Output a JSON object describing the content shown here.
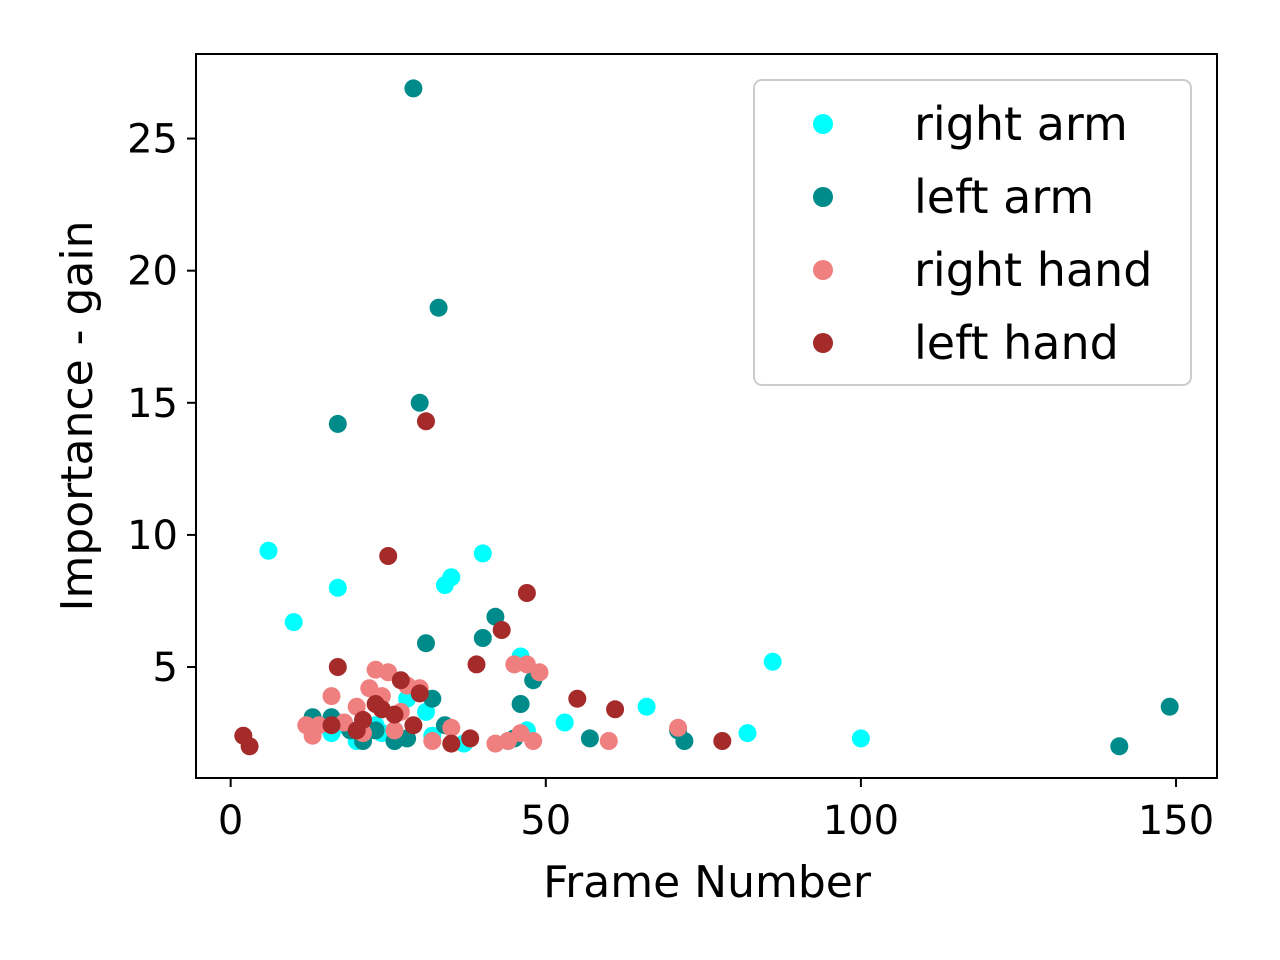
{
  "chart_data": {
    "type": "scatter",
    "title": "",
    "xlabel": "Frame Number",
    "ylabel": "Importance - gain",
    "xlim": [
      -5.5,
      156.5
    ],
    "ylim": [
      0.8,
      28.2
    ],
    "xticks": [
      0,
      50,
      100,
      150
    ],
    "yticks": [
      5,
      10,
      15,
      20,
      25
    ],
    "grid": false,
    "legend_position": "top-right",
    "series": [
      {
        "name": "right arm",
        "color": "#00ffff",
        "points": [
          [
            6,
            9.4
          ],
          [
            10,
            6.7
          ],
          [
            17,
            8.0
          ],
          [
            16,
            2.5
          ],
          [
            18,
            2.8
          ],
          [
            20,
            2.2
          ],
          [
            21,
            2.3
          ],
          [
            23,
            2.8
          ],
          [
            24,
            2.5
          ],
          [
            26,
            2.6
          ],
          [
            28,
            3.8
          ],
          [
            29,
            4.1
          ],
          [
            31,
            3.3
          ],
          [
            32,
            2.4
          ],
          [
            34,
            8.1
          ],
          [
            35,
            8.4
          ],
          [
            37,
            2.1
          ],
          [
            40,
            9.3
          ],
          [
            44,
            2.2
          ],
          [
            46,
            5.4
          ],
          [
            47,
            2.6
          ],
          [
            53,
            2.9
          ],
          [
            66,
            3.5
          ],
          [
            82,
            2.5
          ],
          [
            86,
            5.2
          ],
          [
            100,
            2.3
          ]
        ]
      },
      {
        "name": "left arm",
        "color": "#008b8b",
        "points": [
          [
            13,
            3.1
          ],
          [
            16,
            3.1
          ],
          [
            17,
            14.2
          ],
          [
            19,
            2.6
          ],
          [
            21,
            2.2
          ],
          [
            23,
            2.6
          ],
          [
            26,
            2.2
          ],
          [
            28,
            2.3
          ],
          [
            29,
            26.9
          ],
          [
            30,
            15.0
          ],
          [
            31,
            5.9
          ],
          [
            32,
            3.8
          ],
          [
            33,
            18.6
          ],
          [
            34,
            2.8
          ],
          [
            40,
            6.1
          ],
          [
            42,
            6.9
          ],
          [
            45,
            2.3
          ],
          [
            46,
            3.6
          ],
          [
            48,
            4.5
          ],
          [
            57,
            2.3
          ],
          [
            71,
            2.6
          ],
          [
            72,
            2.2
          ],
          [
            141,
            2.0
          ],
          [
            149,
            3.5
          ]
        ]
      },
      {
        "name": "right hand",
        "color": "#f08080",
        "points": [
          [
            12,
            2.8
          ],
          [
            13,
            2.4
          ],
          [
            14,
            2.8
          ],
          [
            16,
            3.9
          ],
          [
            18,
            2.9
          ],
          [
            20,
            3.5
          ],
          [
            21,
            2.5
          ],
          [
            22,
            4.2
          ],
          [
            23,
            4.9
          ],
          [
            24,
            3.9
          ],
          [
            25,
            4.8
          ],
          [
            26,
            2.6
          ],
          [
            27,
            3.3
          ],
          [
            28,
            4.3
          ],
          [
            30,
            4.2
          ],
          [
            32,
            2.2
          ],
          [
            35,
            2.7
          ],
          [
            42,
            2.1
          ],
          [
            44,
            2.2
          ],
          [
            45,
            5.1
          ],
          [
            46,
            2.5
          ],
          [
            47,
            5.1
          ],
          [
            48,
            2.2
          ],
          [
            49,
            4.8
          ],
          [
            60,
            2.2
          ],
          [
            71,
            2.7
          ]
        ]
      },
      {
        "name": "left hand",
        "color": "#a52a2a",
        "points": [
          [
            2,
            2.4
          ],
          [
            3,
            2.0
          ],
          [
            16,
            2.8
          ],
          [
            17,
            5.0
          ],
          [
            20,
            2.6
          ],
          [
            21,
            3.0
          ],
          [
            23,
            3.6
          ],
          [
            24,
            3.4
          ],
          [
            25,
            9.2
          ],
          [
            26,
            3.2
          ],
          [
            27,
            4.5
          ],
          [
            29,
            2.8
          ],
          [
            30,
            4.0
          ],
          [
            31,
            14.3
          ],
          [
            35,
            2.1
          ],
          [
            38,
            2.3
          ],
          [
            39,
            5.1
          ],
          [
            43,
            6.4
          ],
          [
            47,
            7.8
          ],
          [
            55,
            3.8
          ],
          [
            61,
            3.4
          ],
          [
            78,
            2.2
          ]
        ]
      }
    ]
  }
}
